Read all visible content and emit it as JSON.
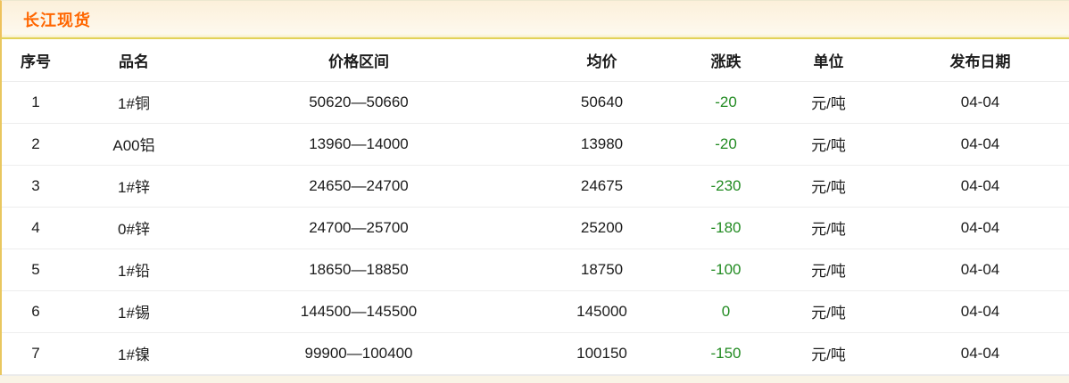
{
  "section": {
    "title": "长江现货"
  },
  "table": {
    "columns": [
      {
        "key": "index",
        "label": "序号"
      },
      {
        "key": "name",
        "label": "品名"
      },
      {
        "key": "range",
        "label": "价格区间"
      },
      {
        "key": "avg",
        "label": "均价"
      },
      {
        "key": "change",
        "label": "涨跌"
      },
      {
        "key": "unit",
        "label": "单位"
      },
      {
        "key": "date",
        "label": "发布日期"
      }
    ],
    "rows": [
      [
        "1",
        "1#铜",
        "50620—50660",
        "50640",
        "-20",
        "元/吨",
        "04-04"
      ],
      [
        "2",
        "A00铝",
        "13960—14000",
        "13980",
        "-20",
        "元/吨",
        "04-04"
      ],
      [
        "3",
        "1#锌",
        "24650—24700",
        "24675",
        "-230",
        "元/吨",
        "04-04"
      ],
      [
        "4",
        "0#锌",
        "24700—25700",
        "25200",
        "-180",
        "元/吨",
        "04-04"
      ],
      [
        "5",
        "1#铅",
        "18650—18850",
        "18750",
        "-100",
        "元/吨",
        "04-04"
      ],
      [
        "6",
        "1#锡",
        "144500—145500",
        "145000",
        "0",
        "元/吨",
        "04-04"
      ],
      [
        "7",
        "1#镍",
        "99900—100400",
        "100150",
        "-150",
        "元/吨",
        "04-04"
      ]
    ]
  },
  "colors": {
    "title_text": "#ff6600",
    "change_text": "#228b22",
    "accent_border": "#e9c75f"
  }
}
